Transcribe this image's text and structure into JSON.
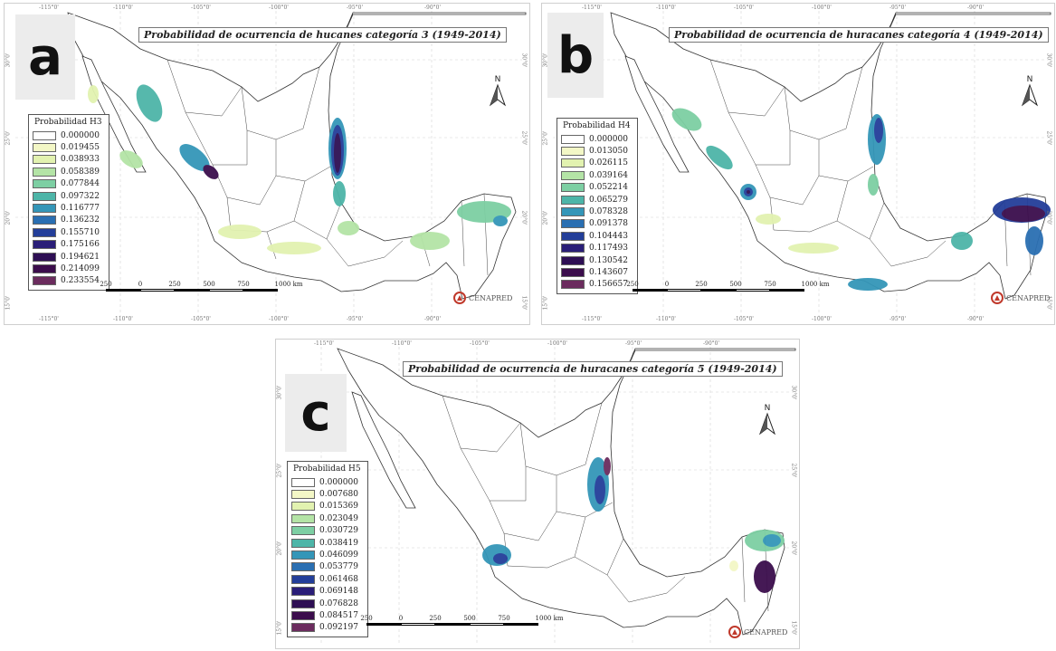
{
  "panels": [
    {
      "letter": "a",
      "title": "Probabilidad de ocurrencia de hucanes categoría 3 (1949-2014)",
      "legend_title": "Probabilidad H3",
      "legend_values": [
        "0.000000",
        "0.019455",
        "0.038933",
        "0.058389",
        "0.077844",
        "0.097322",
        "0.116777",
        "0.136232",
        "0.155710",
        "0.175166",
        "0.194621",
        "0.214099",
        "0.233554"
      ],
      "top_lon_ticks": [
        "-115°0'",
        "-110°0'",
        "-105°0'",
        "-100°0'",
        "-95°0'",
        "-90°0'"
      ],
      "bottom_lon_ticks": [
        "-115°0'",
        "-110°0'",
        "-105°0'",
        "-100°0'",
        "-95°0'",
        "-90°0'"
      ],
      "lat_ticks": [
        "30°0'",
        "25°0'",
        "20°0'",
        "15°0'"
      ],
      "scale_labels": [
        "250",
        "0",
        "250",
        "500",
        "750",
        "1000 km"
      ],
      "north_label": "N",
      "cenapred_label": "CENAPRED"
    },
    {
      "letter": "b",
      "title": "Probabilidad de ocurrencia de huracanes categoría 4 (1949-2014)",
      "legend_title": "Probabilidad H4",
      "legend_values": [
        "0.000000",
        "0.013050",
        "0.026115",
        "0.039164",
        "0.052214",
        "0.065279",
        "0.078328",
        "0.091378",
        "0.104443",
        "0.117493",
        "0.130542",
        "0.143607",
        "0.156657"
      ],
      "top_lon_ticks": [
        "-115°0'",
        "-110°0'",
        "-105°0'",
        "-100°0'",
        "-95°0'",
        "-90°0'"
      ],
      "bottom_lon_ticks": [
        "-115°0'",
        "-110°0'",
        "-105°0'",
        "-100°0'",
        "-95°0'",
        "-90°0'"
      ],
      "lat_ticks": [
        "30°0'",
        "25°0'",
        "20°0'",
        "15°0'"
      ],
      "scale_labels": [
        "250",
        "0",
        "250",
        "500",
        "750",
        "1000 km"
      ],
      "north_label": "N",
      "cenapred_label": "CENAPRED"
    },
    {
      "letter": "c",
      "title": "Probabilidad de ocurrencia de huracanes categoría 5 (1949-2014)",
      "legend_title": "Probabilidad H5",
      "legend_values": [
        "0.000000",
        "0.007680",
        "0.015369",
        "0.023049",
        "0.030729",
        "0.038419",
        "0.046099",
        "0.053779",
        "0.061468",
        "0.069148",
        "0.076828",
        "0.084517",
        "0.092197"
      ],
      "top_lon_ticks": [
        "-115°0'",
        "-110°0'",
        "-105°0'",
        "-100°0'",
        "-95°0'",
        "-90°0'"
      ],
      "bottom_lon_ticks": [],
      "lat_ticks": [
        "30°0'",
        "25°0'",
        "20°0'",
        "15°0'"
      ],
      "scale_labels": [
        "250",
        "0",
        "250",
        "500",
        "750",
        "1000 km"
      ],
      "north_label": "N",
      "cenapred_label": "CENAPRED"
    }
  ],
  "legend_colors": [
    "#ffffff",
    "#f3f7c6",
    "#e2f2b0",
    "#b4e4a6",
    "#7dcfa3",
    "#4db5a8",
    "#3496b8",
    "#2a6fb2",
    "#233e99",
    "#2a1e78",
    "#2e0f54",
    "#3b0d4c",
    "#6b2c5e"
  ]
}
